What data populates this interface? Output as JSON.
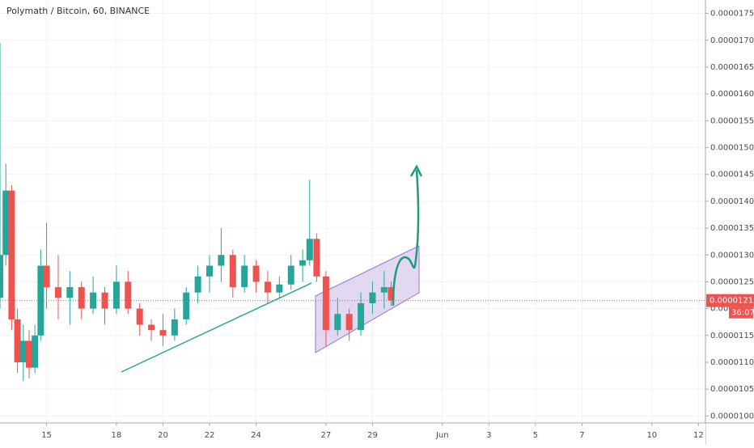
{
  "chart_data": {
    "type": "candlestick",
    "title": "Polymath / Bitcoin, 60, BINANCE",
    "up_color": "#26a69a",
    "down_color": "#ef5350",
    "grid": true,
    "x": [
      13.0,
      13.25,
      13.5,
      13.75,
      14.0,
      14.25,
      14.5,
      14.75,
      15.0,
      15.5,
      16,
      16.5,
      17,
      17.5,
      18,
      18.5,
      19,
      19.5,
      20,
      20.5,
      21,
      21.5,
      22,
      22.5,
      23,
      23.5,
      24,
      24.5,
      25,
      25.5,
      26,
      26.3,
      26.6,
      27.0,
      27.5,
      28,
      28.5,
      29,
      29.5,
      29.8
    ],
    "open": [
      1.22e-05,
      1.3e-05,
      1.42e-05,
      1.18e-05,
      1.1e-05,
      1.14e-05,
      1.09e-05,
      1.15e-05,
      1.28e-05,
      1.24e-05,
      1.22e-05,
      1.24e-05,
      1.2e-05,
      1.23e-05,
      1.2e-05,
      1.25e-05,
      1.2e-05,
      1.17e-05,
      1.16e-05,
      1.15e-05,
      1.18e-05,
      1.23e-05,
      1.26e-05,
      1.28e-05,
      1.3e-05,
      1.24e-05,
      1.28e-05,
      1.25e-05,
      1.23e-05,
      1.245e-05,
      1.28e-05,
      1.29e-05,
      1.33e-05,
      1.26e-05,
      1.16e-05,
      1.19e-05,
      1.16e-05,
      1.21e-05,
      1.23e-05,
      1.24e-05
    ],
    "high": [
      1.695e-05,
      1.47e-05,
      1.43e-05,
      1.2e-05,
      1.17e-05,
      1.16e-05,
      1.17e-05,
      1.31e-05,
      1.36e-05,
      1.3e-05,
      1.27e-05,
      1.25e-05,
      1.26e-05,
      1.24e-05,
      1.28e-05,
      1.27e-05,
      1.21e-05,
      1.18e-05,
      1.19e-05,
      1.2e-05,
      1.24e-05,
      1.28e-05,
      1.3e-05,
      1.35e-05,
      1.31e-05,
      1.3e-05,
      1.29e-05,
      1.27e-05,
      1.26e-05,
      1.3e-05,
      1.31e-05,
      1.44e-05,
      1.34e-05,
      1.27e-05,
      1.22e-05,
      1.2e-05,
      1.23e-05,
      1.25e-05,
      1.27e-05,
      1.25e-05
    ],
    "low": [
      1.2e-05,
      1.28e-05,
      1.16e-05,
      1.08e-05,
      1.065e-05,
      1.07e-05,
      1.08e-05,
      1.14e-05,
      1.2e-05,
      1.18e-05,
      1.17e-05,
      1.18e-05,
      1.19e-05,
      1.17e-05,
      1.19e-05,
      1.19e-05,
      1.15e-05,
      1.14e-05,
      1.13e-05,
      1.14e-05,
      1.17e-05,
      1.21e-05,
      1.23e-05,
      1.25e-05,
      1.22e-05,
      1.23e-05,
      1.23e-05,
      1.21e-05,
      1.22e-05,
      1.235e-05,
      1.25e-05,
      1.28e-05,
      1.25e-05,
      1.13e-05,
      1.15e-05,
      1.14e-05,
      1.15e-05,
      1.19e-05,
      1.2e-05,
      1.205e-05
    ],
    "close": [
      1.3e-05,
      1.42e-05,
      1.18e-05,
      1.1e-05,
      1.14e-05,
      1.09e-05,
      1.15e-05,
      1.28e-05,
      1.24e-05,
      1.22e-05,
      1.24e-05,
      1.2e-05,
      1.23e-05,
      1.2e-05,
      1.25e-05,
      1.2e-05,
      1.17e-05,
      1.16e-05,
      1.15e-05,
      1.18e-05,
      1.23e-05,
      1.26e-05,
      1.28e-05,
      1.3e-05,
      1.24e-05,
      1.28e-05,
      1.25e-05,
      1.23e-05,
      1.245e-05,
      1.28e-05,
      1.29e-05,
      1.33e-05,
      1.26e-05,
      1.16e-05,
      1.19e-05,
      1.16e-05,
      1.21e-05,
      1.23e-05,
      1.24e-05,
      1.215e-05
    ],
    "xlim": [
      13,
      43.3
    ],
    "xticks": [
      15,
      18,
      20,
      22,
      24,
      27,
      29,
      {
        "value": 32,
        "label": "Jun"
      },
      {
        "value": 34,
        "label": "3"
      },
      {
        "value": 36,
        "label": "5"
      },
      {
        "value": 38,
        "label": "7"
      },
      {
        "value": 41,
        "label": "10"
      },
      {
        "value": 43,
        "label": "12"
      }
    ],
    "ylim": [
      9.87e-06,
      1.775e-05
    ],
    "yticks": [
      {
        "value": 1e-05,
        "label": "0.00001000"
      },
      {
        "value": 1.05e-05,
        "label": "0.00001050"
      },
      {
        "value": 1.1e-05,
        "label": "0.00001100"
      },
      {
        "value": 1.15e-05,
        "label": "0.00001150"
      },
      {
        "value": 1.2e-05,
        "label": "0.00001200"
      },
      {
        "value": 1.25e-05,
        "label": "0.00001250"
      },
      {
        "value": 1.3e-05,
        "label": "0.00001300"
      },
      {
        "value": 1.35e-05,
        "label": "0.00001350"
      },
      {
        "value": 1.4e-05,
        "label": "0.00001400"
      },
      {
        "value": 1.45e-05,
        "label": "0.00001450"
      },
      {
        "value": 1.5e-05,
        "label": "0.00001500"
      },
      {
        "value": 1.55e-05,
        "label": "0.00001550"
      },
      {
        "value": 1.6e-05,
        "label": "0.00001600"
      },
      {
        "value": 1.65e-05,
        "label": "0.00001650"
      },
      {
        "value": 1.7e-05,
        "label": "0.00001700"
      },
      {
        "value": 1.75e-05,
        "label": "0.00001750"
      }
    ],
    "last_price": {
      "value": 1.215e-05,
      "label": "0.00001215"
    },
    "countdown": "36:07"
  }
}
